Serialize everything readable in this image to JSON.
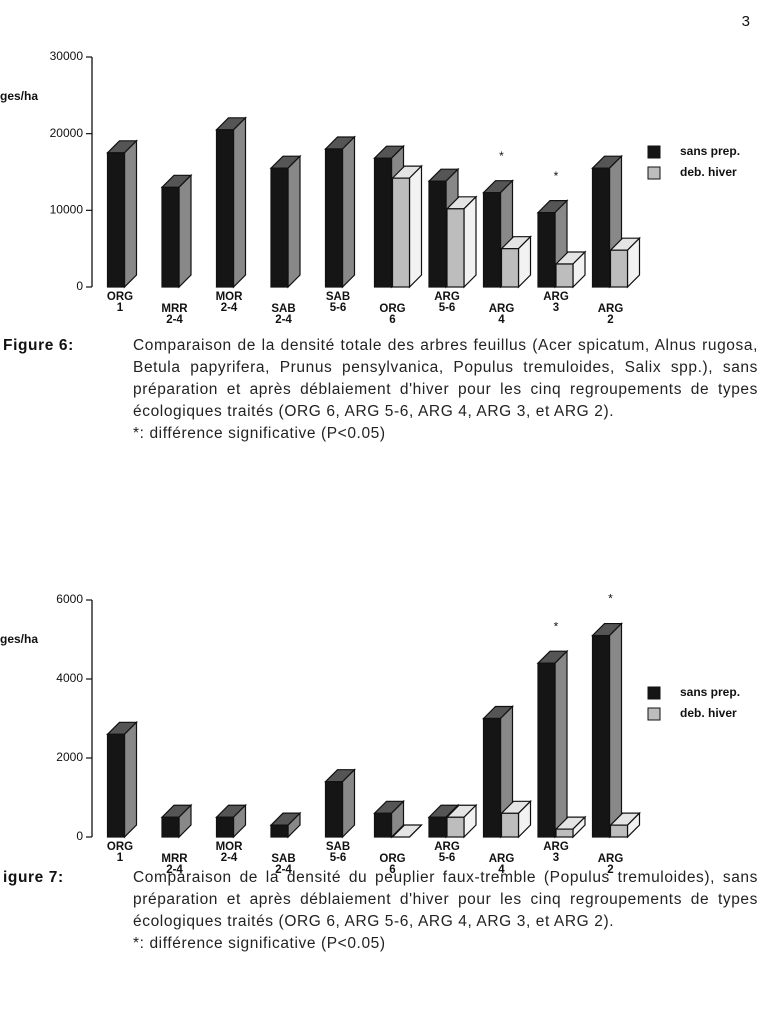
{
  "page_number": "3",
  "chart_data": [
    {
      "type": "bar",
      "y_label": "ges/ha",
      "categories": [
        "ORG 1",
        "MRR 2-4",
        "MOR 2-4",
        "SAB 2-4",
        "SAB 5-6",
        "ORG 6",
        "ARG 5-6",
        "ARG 4",
        "ARG 3",
        "ARG 2"
      ],
      "series": [
        {
          "name": "sans prep.",
          "color": "#151515",
          "values": [
            17500,
            13000,
            20500,
            15500,
            18000,
            16800,
            13800,
            12300,
            9700,
            15500
          ]
        },
        {
          "name": "deb. hiver",
          "color": "#bdbdbd",
          "values": [
            null,
            null,
            null,
            null,
            null,
            14200,
            10200,
            5000,
            3000,
            4800
          ]
        }
      ],
      "ylim": [
        0,
        30000
      ],
      "yticks": [
        0,
        10000,
        20000,
        30000
      ],
      "annotations": [
        {
          "text": "*",
          "category": "ARG 4"
        },
        {
          "text": "*",
          "category": "ARG 3"
        }
      ],
      "caption_label": "Figure 6:",
      "caption": "Comparaison de la densité totale des arbres feuillus (Acer spicatum, Alnus rugosa, Betula papyrifera, Prunus pensylvanica, Populus tremuloides, Salix spp.), sans préparation et après déblaiement d'hiver pour les cinq regroupements de types écologiques traités (ORG 6, ARG 5-6, ARG 4, ARG 3, et ARG 2).",
      "note": "*: différence significative (P<0.05)"
    },
    {
      "type": "bar",
      "y_label": "ges/ha",
      "categories": [
        "ORG 1",
        "MRR 2-4",
        "MOR 2-4",
        "SAB 2-4",
        "SAB 5-6",
        "ORG 6",
        "ARG 5-6",
        "ARG 4",
        "ARG 3",
        "ARG 2"
      ],
      "series": [
        {
          "name": "sans prep.",
          "color": "#151515",
          "values": [
            2600,
            500,
            500,
            300,
            1400,
            600,
            500,
            3000,
            4400,
            5100
          ]
        },
        {
          "name": "deb. hiver",
          "color": "#bdbdbd",
          "values": [
            null,
            null,
            null,
            null,
            null,
            0,
            500,
            600,
            200,
            300
          ]
        }
      ],
      "ylim": [
        0,
        6000
      ],
      "yticks": [
        0,
        2000,
        4000,
        6000
      ],
      "annotations": [
        {
          "text": "*",
          "category": "ARG 3"
        },
        {
          "text": "*",
          "category": "ARG 2"
        }
      ],
      "caption_label": "igure 7:",
      "caption": "Comparaison de la densité du peuplier faux-tremble (Populus tremuloides), sans préparation et après déblaiement d'hiver pour les cinq regroupements de types écologiques traités (ORG 6, ARG 5-6, ARG 4, ARG 3, et ARG 2).",
      "note": "*: différence significative (P<0.05)"
    }
  ]
}
